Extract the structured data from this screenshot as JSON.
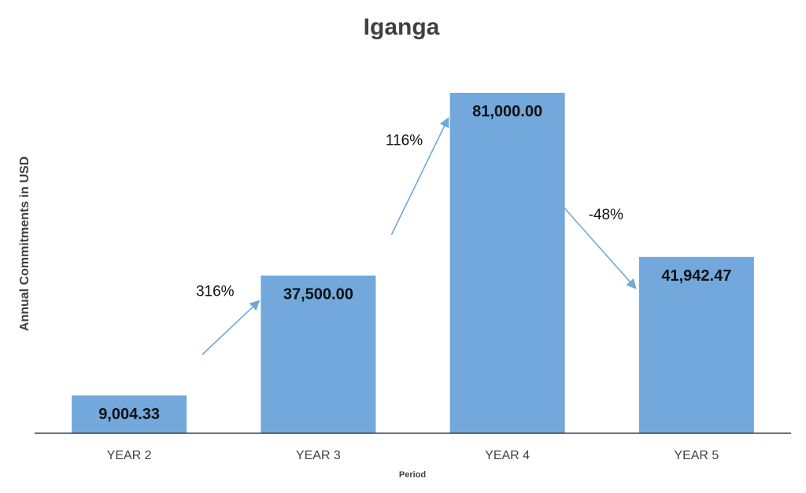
{
  "chart_data": {
    "type": "bar",
    "title": "Iganga",
    "xlabel": "Period",
    "ylabel": "Annual Commitments in USD",
    "categories": [
      "YEAR 2",
      "YEAR 3",
      "YEAR 4",
      "YEAR 5"
    ],
    "values": [
      9004.33,
      37500.0,
      81000.0,
      41942.47
    ],
    "data_labels": [
      "9,004.33",
      "37,500.00",
      "81,000.00",
      "41,942.47"
    ],
    "ylim": [
      0,
      81000
    ],
    "grid": false,
    "legend": "none",
    "annotations": [
      {
        "from": "YEAR 2",
        "to": "YEAR 3",
        "text": "316%"
      },
      {
        "from": "YEAR 3",
        "to": "YEAR 4",
        "text": "116%"
      },
      {
        "from": "YEAR 4",
        "to": "YEAR 5",
        "text": "-48%"
      }
    ],
    "colors": {
      "bar": "#72A8DC",
      "axis": "#404040",
      "arrow": "#6FA8DC"
    }
  }
}
